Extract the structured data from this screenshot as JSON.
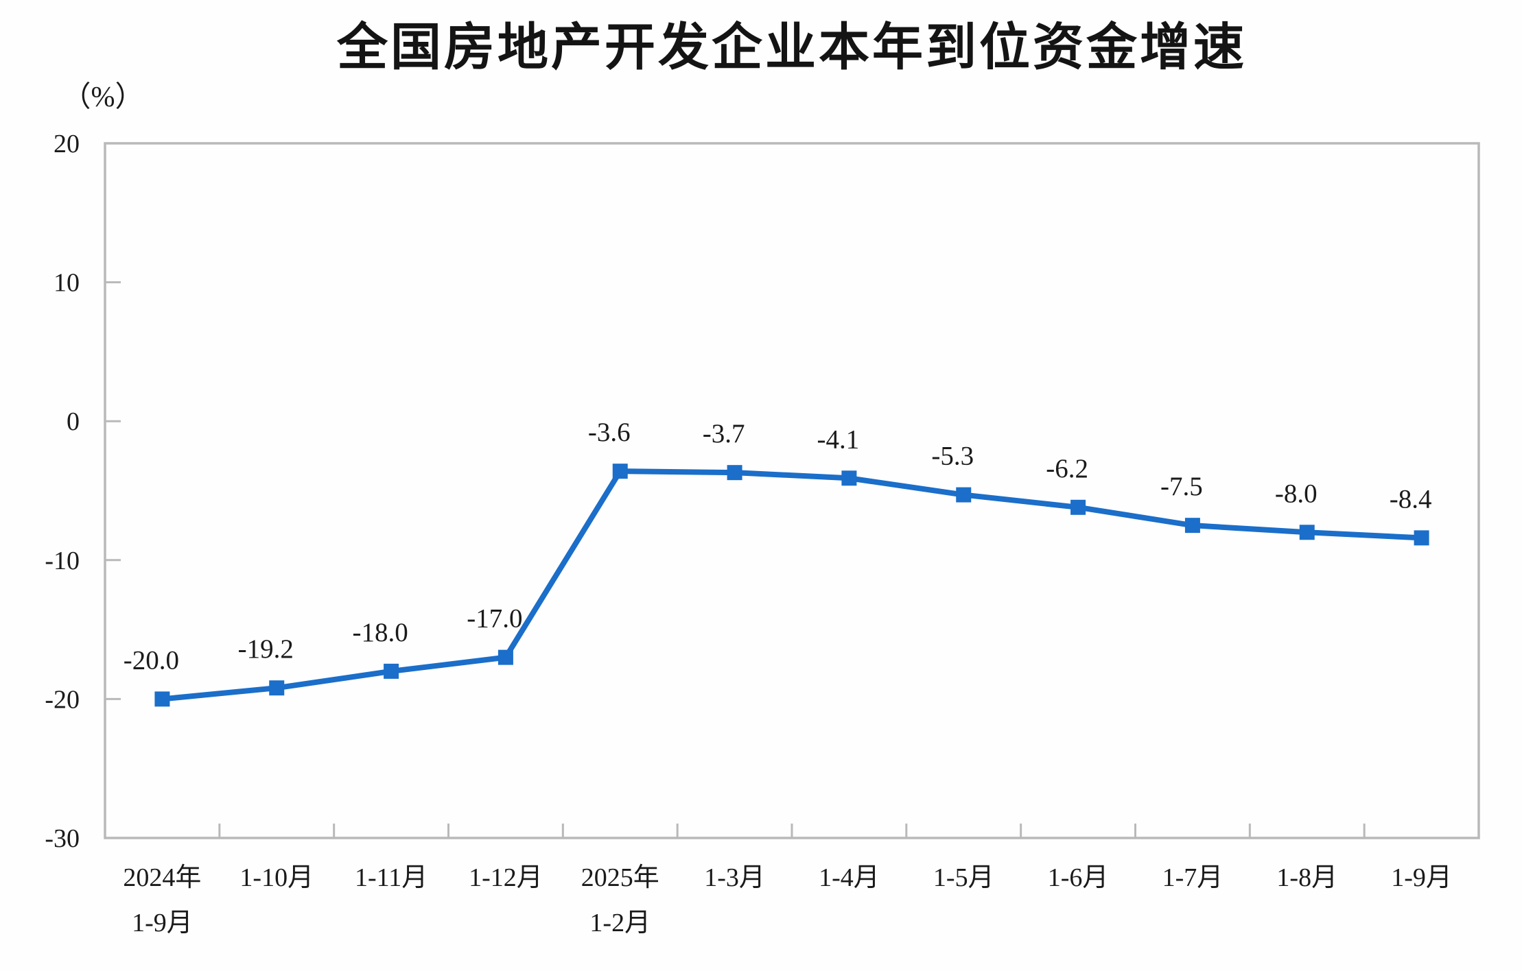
{
  "chart_data": {
    "type": "line",
    "title": "全国房地产开发企业本年到位资金增速",
    "unit_label": "（%）",
    "categories": [
      "2024年\n1-9月",
      "1-10月",
      "1-11月",
      "1-12月",
      "2025年\n1-2月",
      "1-3月",
      "1-4月",
      "1-5月",
      "1-6月",
      "1-7月",
      "1-8月",
      "1-9月"
    ],
    "series": [
      {
        "name": "本年到位资金增速",
        "values": [
          -20.0,
          -19.2,
          -18.0,
          -17.0,
          -3.6,
          -3.7,
          -4.1,
          -5.3,
          -6.2,
          -7.5,
          -8.0,
          -8.4
        ],
        "data_labels": [
          "-20.0",
          "-19.2",
          "-18.0",
          "-17.0",
          "-3.6",
          "-3.7",
          "-4.1",
          "-5.3",
          "-6.2",
          "-7.5",
          "-8.0",
          "-8.4"
        ]
      }
    ],
    "ylim": [
      -30,
      20
    ],
    "yticks": [
      20,
      10,
      0,
      -10,
      -20,
      -30
    ],
    "grid": false,
    "legend_position": "none",
    "marker": "square",
    "colors": {
      "line": "#1b6ec9",
      "marker": "#1b6ec9",
      "axis": "#b9b9b9",
      "text": "#1a1a1a",
      "title": "#141414",
      "background": "#fefefe"
    }
  }
}
